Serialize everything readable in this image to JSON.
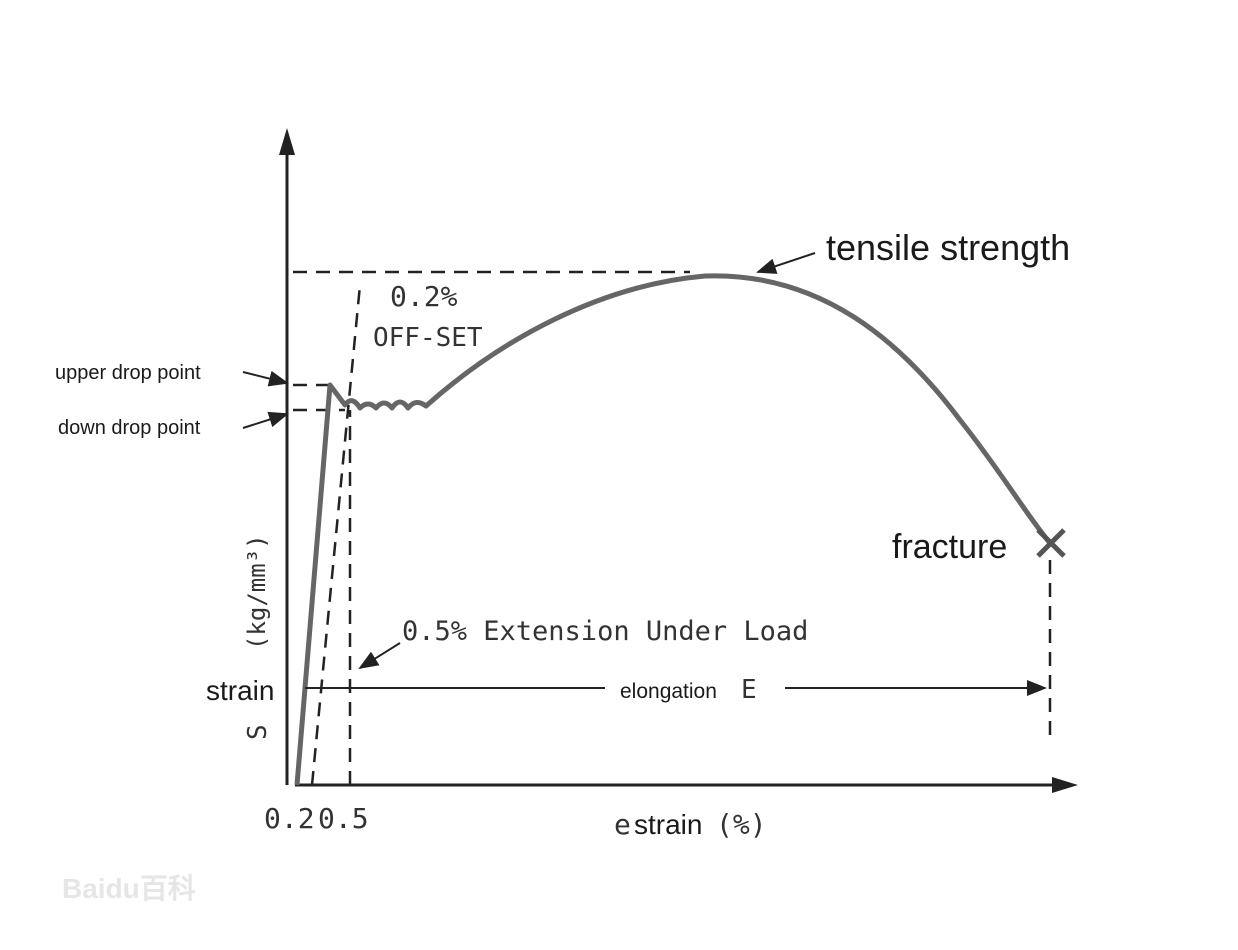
{
  "title_labels": {
    "tensile_strength": "tensile strength",
    "offset_value": "0.2%",
    "offset_text": "OFF-SET",
    "upper_drop": "upper drop point",
    "down_drop": "down drop point",
    "fracture": "fracture",
    "extension": "0.5% Extension Under Load",
    "elongation": "elongation",
    "elongation_symbol": "E"
  },
  "y_axis": {
    "symbol": "S",
    "unit": "(kg/mm³)",
    "name": "strain"
  },
  "x_axis": {
    "tick_1": "0.2",
    "tick_2": "0.5",
    "symbol": "e",
    "name": "strain",
    "unit": "(%)"
  },
  "watermark": "Baidu百科"
}
